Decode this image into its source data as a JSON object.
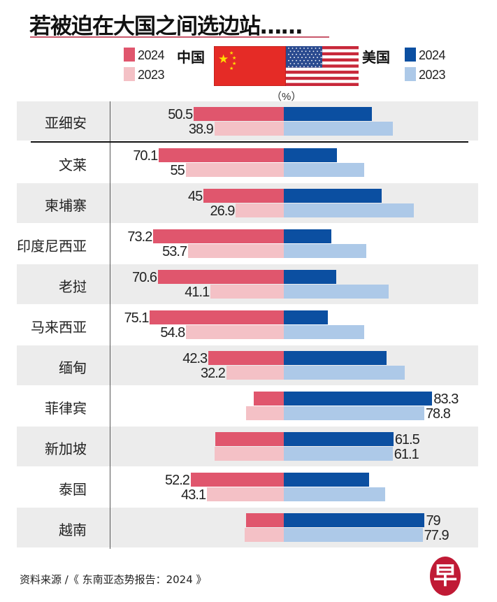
{
  "chart_data": {
    "type": "bar",
    "title": "若被迫在大国之间选边站……",
    "unit": "（%）",
    "legend": {
      "china_label": "中国",
      "us_label": "美国",
      "years": [
        "2024",
        "2023"
      ]
    },
    "colors": {
      "china_2024": "#e0566d",
      "china_2023": "#f4c1c6",
      "us_2024": "#0b4fa1",
      "us_2023": "#adc9e8"
    },
    "categories": [
      "亚细安",
      "文莱",
      "柬埔寨",
      "印度尼西亚",
      "老挝",
      "马来西亚",
      "缅甸",
      "菲律宾",
      "新加坡",
      "泰国",
      "越南"
    ],
    "series": [
      {
        "name": "中国 2024",
        "values": [
          50.5,
          70.1,
          45,
          73.2,
          70.6,
          75.1,
          42.3,
          16.7,
          38.5,
          52.2,
          21
        ]
      },
      {
        "name": "中国 2023",
        "values": [
          38.9,
          55,
          26.9,
          53.7,
          41.1,
          54.8,
          32.2,
          21.2,
          38.9,
          43.1,
          22.1
        ]
      },
      {
        "name": "美国 2024",
        "values": [
          49.5,
          29.9,
          55,
          26.8,
          29.4,
          24.9,
          57.7,
          83.3,
          61.5,
          47.8,
          79
        ]
      },
      {
        "name": "美国 2023",
        "values": [
          61.1,
          45,
          73.1,
          46.3,
          58.9,
          45.2,
          67.8,
          78.8,
          61.1,
          56.9,
          77.9
        ]
      }
    ],
    "labeled_side": [
      "china",
      "china",
      "china",
      "china",
      "china",
      "china",
      "china",
      "us",
      "us",
      "china",
      "us"
    ]
  },
  "source": "资料来源 /《 东南亚态势报告：2024 》",
  "logo_text": "早"
}
